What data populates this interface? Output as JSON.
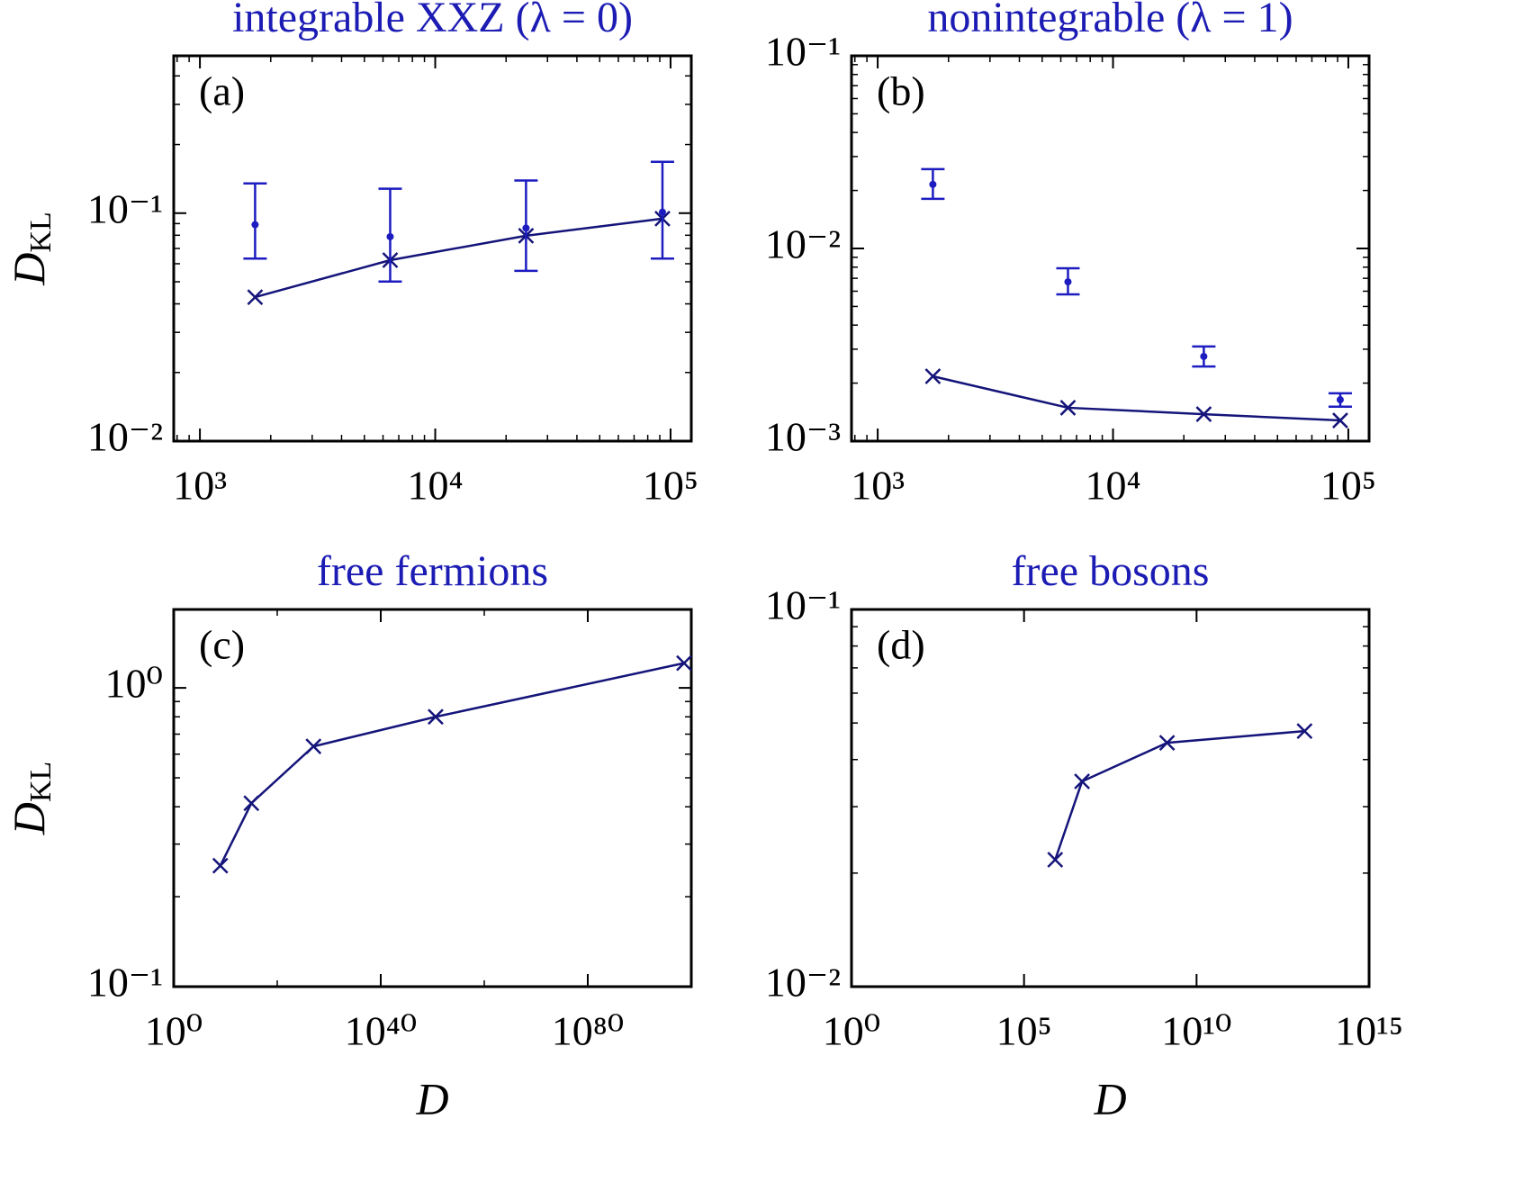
{
  "chart_data": [
    {
      "type": "line",
      "title": "integrable XXZ (λ = 0)",
      "panel_label": "(a)",
      "ylabel": "D",
      "ylabel_sub": "KL",
      "xlog": true,
      "ylog": true,
      "xlim": [
        774,
        122500
      ],
      "ylim": [
        0.01,
        0.49
      ],
      "xticks": [
        {
          "value": 1000,
          "label": "10³"
        },
        {
          "value": 10000,
          "label": "10⁴"
        },
        {
          "value": 100000,
          "label": "10⁵"
        }
      ],
      "xminor": [
        800,
        900,
        2000,
        3000,
        4000,
        5000,
        6000,
        7000,
        8000,
        9000,
        20000,
        30000,
        40000,
        50000,
        60000,
        70000,
        80000,
        90000
      ],
      "yticks": [
        {
          "value": 0.01,
          "label": "10⁻²"
        },
        {
          "value": 0.1,
          "label": "10⁻¹"
        }
      ],
      "yminor": [
        0.02,
        0.03,
        0.04,
        0.05,
        0.06,
        0.07,
        0.08,
        0.09,
        0.2,
        0.3,
        0.4
      ],
      "x": [
        1716,
        6435,
        24310,
        92378
      ],
      "series": [
        {
          "color": "#14147a",
          "marker": "x",
          "line": true,
          "values": [
            0.0428,
            0.0622,
            0.0796,
            0.0946
          ]
        },
        {
          "color": "#1c1cc0",
          "marker": "dot",
          "line": false,
          "values": [
            0.089,
            0.0788,
            0.086,
            0.101
          ],
          "lower": [
            0.0632,
            0.0501,
            0.0558,
            0.0632
          ],
          "upper": [
            0.135,
            0.128,
            0.139,
            0.168
          ]
        }
      ]
    },
    {
      "type": "line",
      "title": "nonintegrable (λ = 1)",
      "panel_label": "(b)",
      "xlog": true,
      "ylog": true,
      "xlim": [
        774,
        122500
      ],
      "ylim": [
        0.001,
        0.1
      ],
      "xticks": [
        {
          "value": 1000,
          "label": "10³"
        },
        {
          "value": 10000,
          "label": "10⁴"
        },
        {
          "value": 100000,
          "label": "10⁵"
        }
      ],
      "xminor": [
        800,
        900,
        2000,
        3000,
        4000,
        5000,
        6000,
        7000,
        8000,
        9000,
        20000,
        30000,
        40000,
        50000,
        60000,
        70000,
        80000,
        90000
      ],
      "yticks": [
        {
          "value": 0.001,
          "label": "10⁻³"
        },
        {
          "value": 0.01,
          "label": "10⁻²"
        },
        {
          "value": 0.1,
          "label": "10⁻¹"
        }
      ],
      "yminor": [
        0.002,
        0.003,
        0.004,
        0.005,
        0.006,
        0.007,
        0.008,
        0.009,
        0.02,
        0.03,
        0.04,
        0.05,
        0.06,
        0.07,
        0.08,
        0.09
      ],
      "x": [
        1716,
        6435,
        24310,
        92378
      ],
      "series": [
        {
          "color": "#14147a",
          "marker": "x",
          "line": true,
          "values": [
            0.00217,
            0.00149,
            0.00138,
            0.00128
          ]
        },
        {
          "color": "#1c1cc0",
          "marker": "dot",
          "line": false,
          "values": [
            0.0215,
            0.00671,
            0.00275,
            0.00164
          ],
          "lower": [
            0.0181,
            0.00578,
            0.00244,
            0.00151
          ],
          "upper": [
            0.0258,
            0.00789,
            0.0031,
            0.00177
          ]
        }
      ]
    },
    {
      "type": "line",
      "title": "free fermions",
      "panel_label": "(c)",
      "ylabel": "D",
      "ylabel_sub": "KL",
      "xlabel": "D",
      "xlog": true,
      "ylog": true,
      "xlim": [
        1,
        1e+100
      ],
      "ylim": [
        0.1,
        1.83
      ],
      "xticks": [
        {
          "value": 1,
          "label": "10⁰"
        },
        {
          "value": 1e+40,
          "label": "10⁴⁰"
        },
        {
          "value": 1e+80,
          "label": "10⁸⁰"
        }
      ],
      "xminor": [
        1e+20,
        1e+60
      ],
      "yticks": [
        {
          "value": 0.1,
          "label": "10⁻¹"
        },
        {
          "value": 1,
          "label": "10⁰"
        }
      ],
      "yminor": [
        0.2,
        0.3,
        0.4,
        0.5,
        0.6,
        0.7,
        0.8,
        0.9
      ],
      "x": [
        1000000000.0,
        1000000000000000.0,
        1e+27,
        4e+50,
        4e+98
      ],
      "series": [
        {
          "color": "#14147a",
          "marker": "x",
          "line": true,
          "values": [
            0.254,
            0.411,
            0.637,
            0.8,
            1.21
          ]
        }
      ]
    },
    {
      "type": "line",
      "title": "free bosons",
      "panel_label": "(d)",
      "xlabel": "D",
      "xlog": true,
      "ylog": true,
      "xlim": [
        1,
        1000000000000000.0
      ],
      "ylim": [
        0.01,
        0.1
      ],
      "xticks": [
        {
          "value": 1,
          "label": "10⁰"
        },
        {
          "value": 100000,
          "label": "10⁵"
        },
        {
          "value": 10000000000.0,
          "label": "10¹⁰"
        },
        {
          "value": 1000000000000000.0,
          "label": "10¹⁵"
        }
      ],
      "xminor": [],
      "yticks": [
        {
          "value": 0.01,
          "label": "10⁻²"
        },
        {
          "value": 0.1,
          "label": "10⁻¹"
        }
      ],
      "yminor": [
        0.02,
        0.03,
        0.04,
        0.05,
        0.06,
        0.07,
        0.08,
        0.09
      ],
      "x": [
        800000,
        4800000,
        1400000000,
        13500000000000
      ],
      "series": [
        {
          "color": "#14147a",
          "marker": "x",
          "line": true,
          "values": [
            0.0217,
            0.035,
            0.0443,
            0.0476
          ]
        }
      ]
    }
  ]
}
